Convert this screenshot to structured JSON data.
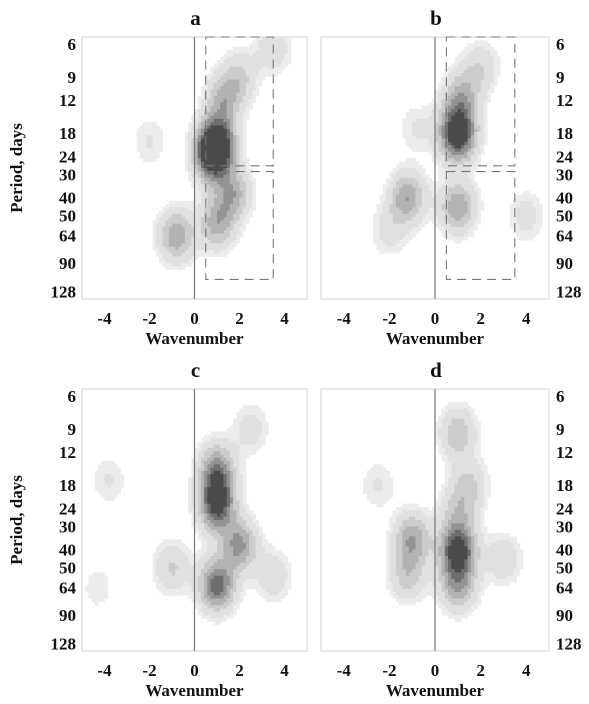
{
  "chart_data": [
    {
      "type": "heatmap",
      "panel": "a",
      "xlabel": "Wavenumber",
      "ylabel": "Period, days",
      "xlim": [
        -5,
        5
      ],
      "x_ticks": [
        "-4",
        "-2",
        "0",
        "2",
        "4"
      ],
      "y_ticks": [
        "6",
        "9",
        "12",
        "18",
        "24",
        "30",
        "40",
        "50",
        "64",
        "90",
        "128"
      ],
      "y_scale": "log",
      "period_range_days": [
        5.5,
        140
      ],
      "zero_line": true,
      "dashed_boxes": [
        {
          "k_range": [
            0.5,
            3.5
          ],
          "period_range": [
            5.5,
            27
          ]
        },
        {
          "k_range": [
            0.5,
            3.5
          ],
          "period_range": [
            29,
            110
          ]
        }
      ],
      "blobs": [
        {
          "k": 1.0,
          "period": 20,
          "amplitude": 0.85
        },
        {
          "k": 0.8,
          "period": 24,
          "amplitude": 0.9
        },
        {
          "k": 1.3,
          "period": 12,
          "amplitude": 0.45
        },
        {
          "k": 2.0,
          "period": 9,
          "amplitude": 0.3
        },
        {
          "k": 1.7,
          "period": 38,
          "amplitude": 0.5
        },
        {
          "k": 1.0,
          "period": 55,
          "amplitude": 0.5
        },
        {
          "k": -0.8,
          "period": 64,
          "amplitude": 0.55
        },
        {
          "k": -2.0,
          "period": 20,
          "amplitude": 0.15
        },
        {
          "k": 3.5,
          "period": 6.3,
          "amplitude": 0.25
        }
      ]
    },
    {
      "type": "heatmap",
      "panel": "b",
      "xlabel": "Wavenumber",
      "ylabel": "",
      "xlim": [
        -5,
        5
      ],
      "x_ticks": [
        "-4",
        "-2",
        "0",
        "2",
        "4"
      ],
      "y_ticks": [
        "6",
        "9",
        "12",
        "18",
        "24",
        "30",
        "40",
        "50",
        "64",
        "90",
        "128"
      ],
      "y_scale": "log",
      "period_range_days": [
        5.5,
        140
      ],
      "zero_line": true,
      "dashed_boxes": [
        {
          "k_range": [
            0.5,
            3.5
          ],
          "period_range": [
            5.5,
            27
          ]
        },
        {
          "k_range": [
            0.5,
            3.5
          ],
          "period_range": [
            29,
            110
          ]
        }
      ],
      "blobs": [
        {
          "k": 1.0,
          "period": 19,
          "amplitude": 0.85
        },
        {
          "k": 1.0,
          "period": 15,
          "amplitude": 0.4
        },
        {
          "k": 1.2,
          "period": 11,
          "amplitude": 0.35
        },
        {
          "k": 2.0,
          "period": 8,
          "amplitude": 0.25
        },
        {
          "k": -1.2,
          "period": 40,
          "amplitude": 0.55
        },
        {
          "k": 1.0,
          "period": 45,
          "amplitude": 0.55
        },
        {
          "k": -2.0,
          "period": 60,
          "amplitude": 0.2
        },
        {
          "k": 4.0,
          "period": 50,
          "amplitude": 0.2
        },
        {
          "k": -0.8,
          "period": 17,
          "amplitude": 0.15
        }
      ]
    },
    {
      "type": "heatmap",
      "panel": "c",
      "xlabel": "Wavenumber",
      "ylabel": "Period, days",
      "xlim": [
        -5,
        5
      ],
      "x_ticks": [
        "-4",
        "-2",
        "0",
        "2",
        "4"
      ],
      "y_ticks": [
        "6",
        "9",
        "12",
        "18",
        "24",
        "30",
        "40",
        "50",
        "64",
        "90",
        "128"
      ],
      "y_scale": "log",
      "period_range_days": [
        5.5,
        140
      ],
      "zero_line": true,
      "dashed_boxes": [],
      "blobs": [
        {
          "k": 1.0,
          "period": 24,
          "amplitude": 0.75
        },
        {
          "k": 1.0,
          "period": 18,
          "amplitude": 0.5
        },
        {
          "k": 1.0,
          "period": 14,
          "amplitude": 0.4
        },
        {
          "k": 1.0,
          "period": 62,
          "amplitude": 0.8
        },
        {
          "k": 2.0,
          "period": 38,
          "amplitude": 0.6
        },
        {
          "k": 3.5,
          "period": 55,
          "amplitude": 0.25
        },
        {
          "k": -1.0,
          "period": 50,
          "amplitude": 0.3
        },
        {
          "k": -3.8,
          "period": 17,
          "amplitude": 0.15
        },
        {
          "k": -4.3,
          "period": 64,
          "amplitude": 0.12
        },
        {
          "k": 2.5,
          "period": 9,
          "amplitude": 0.2
        }
      ]
    },
    {
      "type": "heatmap",
      "panel": "d",
      "xlabel": "Wavenumber",
      "ylabel": "",
      "xlim": [
        -5,
        5
      ],
      "x_ticks": [
        "-4",
        "-2",
        "0",
        "2",
        "4"
      ],
      "y_ticks": [
        "6",
        "9",
        "12",
        "18",
        "24",
        "30",
        "40",
        "50",
        "64",
        "90",
        "128"
      ],
      "y_scale": "log",
      "period_range_days": [
        5.5,
        140
      ],
      "zero_line": true,
      "dashed_boxes": [],
      "blobs": [
        {
          "k": 1.0,
          "period": 40,
          "amplitude": 0.95
        },
        {
          "k": 1.0,
          "period": 62,
          "amplitude": 0.55
        },
        {
          "k": -1.0,
          "period": 35,
          "amplitude": 0.55
        },
        {
          "k": -1.2,
          "period": 55,
          "amplitude": 0.35
        },
        {
          "k": 1.0,
          "period": 9.5,
          "amplitude": 0.4
        },
        {
          "k": 1.5,
          "period": 18,
          "amplitude": 0.3
        },
        {
          "k": 1.0,
          "period": 25,
          "amplitude": 0.3
        },
        {
          "k": -2.5,
          "period": 18,
          "amplitude": 0.15
        },
        {
          "k": 3.0,
          "period": 45,
          "amplitude": 0.25
        }
      ]
    }
  ]
}
